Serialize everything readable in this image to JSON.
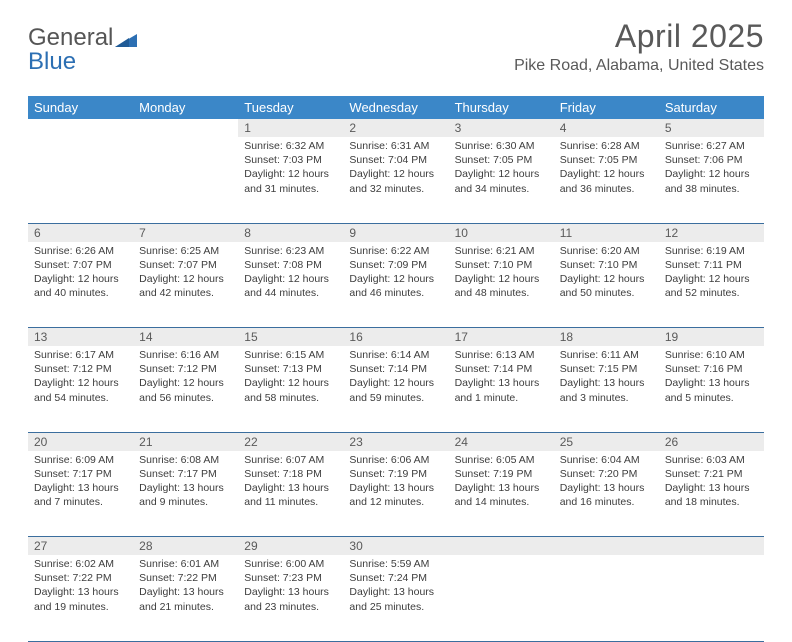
{
  "brand": {
    "line1": "General",
    "line2": "Blue"
  },
  "title": "April 2025",
  "location": "Pike Road, Alabama, United States",
  "colors": {
    "header_bg": "#3b87c8",
    "header_text": "#ffffff",
    "daynum_bg": "#ececec",
    "daynum_text": "#5a5a5a",
    "rule": "#3b6e9e",
    "title_text": "#595959",
    "body_text": "#3d3d3d",
    "logo_grey": "#6a6a6a",
    "logo_blue": "#2c6fb3"
  },
  "day_headers": [
    "Sunday",
    "Monday",
    "Tuesday",
    "Wednesday",
    "Thursday",
    "Friday",
    "Saturday"
  ],
  "weeks": [
    [
      null,
      null,
      {
        "n": "1",
        "sr": "6:32 AM",
        "ss": "7:03 PM",
        "dl": "12 hours and 31 minutes."
      },
      {
        "n": "2",
        "sr": "6:31 AM",
        "ss": "7:04 PM",
        "dl": "12 hours and 32 minutes."
      },
      {
        "n": "3",
        "sr": "6:30 AM",
        "ss": "7:05 PM",
        "dl": "12 hours and 34 minutes."
      },
      {
        "n": "4",
        "sr": "6:28 AM",
        "ss": "7:05 PM",
        "dl": "12 hours and 36 minutes."
      },
      {
        "n": "5",
        "sr": "6:27 AM",
        "ss": "7:06 PM",
        "dl": "12 hours and 38 minutes."
      }
    ],
    [
      {
        "n": "6",
        "sr": "6:26 AM",
        "ss": "7:07 PM",
        "dl": "12 hours and 40 minutes."
      },
      {
        "n": "7",
        "sr": "6:25 AM",
        "ss": "7:07 PM",
        "dl": "12 hours and 42 minutes."
      },
      {
        "n": "8",
        "sr": "6:23 AM",
        "ss": "7:08 PM",
        "dl": "12 hours and 44 minutes."
      },
      {
        "n": "9",
        "sr": "6:22 AM",
        "ss": "7:09 PM",
        "dl": "12 hours and 46 minutes."
      },
      {
        "n": "10",
        "sr": "6:21 AM",
        "ss": "7:10 PM",
        "dl": "12 hours and 48 minutes."
      },
      {
        "n": "11",
        "sr": "6:20 AM",
        "ss": "7:10 PM",
        "dl": "12 hours and 50 minutes."
      },
      {
        "n": "12",
        "sr": "6:19 AM",
        "ss": "7:11 PM",
        "dl": "12 hours and 52 minutes."
      }
    ],
    [
      {
        "n": "13",
        "sr": "6:17 AM",
        "ss": "7:12 PM",
        "dl": "12 hours and 54 minutes."
      },
      {
        "n": "14",
        "sr": "6:16 AM",
        "ss": "7:12 PM",
        "dl": "12 hours and 56 minutes."
      },
      {
        "n": "15",
        "sr": "6:15 AM",
        "ss": "7:13 PM",
        "dl": "12 hours and 58 minutes."
      },
      {
        "n": "16",
        "sr": "6:14 AM",
        "ss": "7:14 PM",
        "dl": "12 hours and 59 minutes."
      },
      {
        "n": "17",
        "sr": "6:13 AM",
        "ss": "7:14 PM",
        "dl": "13 hours and 1 minute."
      },
      {
        "n": "18",
        "sr": "6:11 AM",
        "ss": "7:15 PM",
        "dl": "13 hours and 3 minutes."
      },
      {
        "n": "19",
        "sr": "6:10 AM",
        "ss": "7:16 PM",
        "dl": "13 hours and 5 minutes."
      }
    ],
    [
      {
        "n": "20",
        "sr": "6:09 AM",
        "ss": "7:17 PM",
        "dl": "13 hours and 7 minutes."
      },
      {
        "n": "21",
        "sr": "6:08 AM",
        "ss": "7:17 PM",
        "dl": "13 hours and 9 minutes."
      },
      {
        "n": "22",
        "sr": "6:07 AM",
        "ss": "7:18 PM",
        "dl": "13 hours and 11 minutes."
      },
      {
        "n": "23",
        "sr": "6:06 AM",
        "ss": "7:19 PM",
        "dl": "13 hours and 12 minutes."
      },
      {
        "n": "24",
        "sr": "6:05 AM",
        "ss": "7:19 PM",
        "dl": "13 hours and 14 minutes."
      },
      {
        "n": "25",
        "sr": "6:04 AM",
        "ss": "7:20 PM",
        "dl": "13 hours and 16 minutes."
      },
      {
        "n": "26",
        "sr": "6:03 AM",
        "ss": "7:21 PM",
        "dl": "13 hours and 18 minutes."
      }
    ],
    [
      {
        "n": "27",
        "sr": "6:02 AM",
        "ss": "7:22 PM",
        "dl": "13 hours and 19 minutes."
      },
      {
        "n": "28",
        "sr": "6:01 AM",
        "ss": "7:22 PM",
        "dl": "13 hours and 21 minutes."
      },
      {
        "n": "29",
        "sr": "6:00 AM",
        "ss": "7:23 PM",
        "dl": "13 hours and 23 minutes."
      },
      {
        "n": "30",
        "sr": "5:59 AM",
        "ss": "7:24 PM",
        "dl": "13 hours and 25 minutes."
      },
      null,
      null,
      null
    ]
  ],
  "labels": {
    "sunrise": "Sunrise:",
    "sunset": "Sunset:",
    "daylight": "Daylight:"
  }
}
